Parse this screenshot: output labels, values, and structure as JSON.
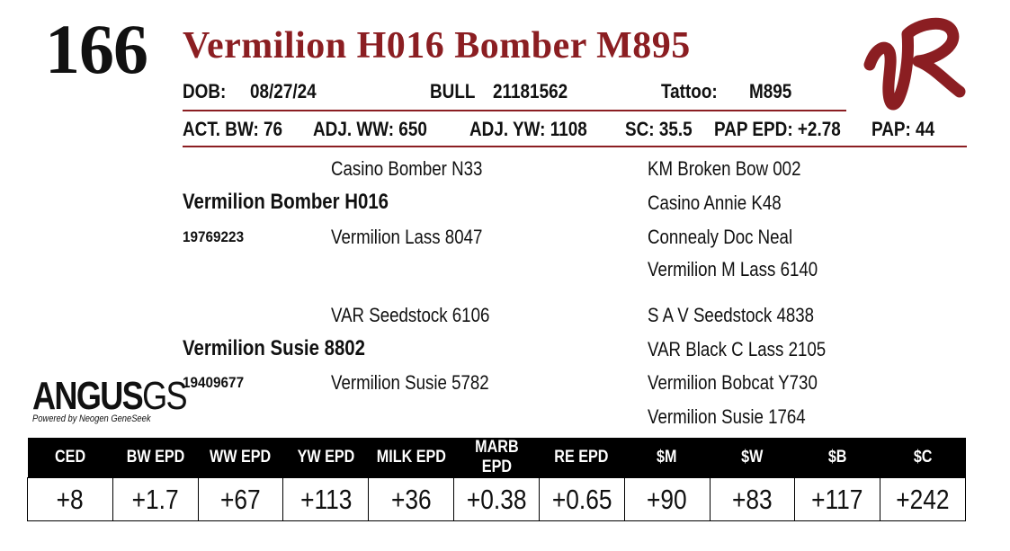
{
  "lot": "166",
  "title": "Vermilion H016 Bomber M895",
  "info": {
    "dob_label": "DOB:",
    "dob": "08/27/24",
    "sex": "BULL",
    "reg": "21181562",
    "tattoo_label": "Tattoo:",
    "tattoo": "M895"
  },
  "stats": {
    "act_bw": "ACT. BW: 76",
    "adj_ww": "ADJ. WW: 650",
    "adj_yw": "ADJ. YW: 1108",
    "sc": "SC: 35.5",
    "pap_epd": "PAP EPD: +2.78",
    "pap": "PAP: 44"
  },
  "pedigree": {
    "sire": {
      "name": "Vermilion Bomber H016",
      "reg": "19769223",
      "sire": "Casino Bomber N33",
      "dam": "Vermilion Lass 8047",
      "gg": [
        "KM Broken Bow 002",
        "Casino Annie K48",
        "Connealy Doc Neal",
        "Vermilion M Lass 6140"
      ]
    },
    "dam": {
      "name": "Vermilion Susie 8802",
      "reg": "19409677",
      "sire": "VAR Seedstock 6106",
      "dam": "Vermilion Susie 5782",
      "gg": [
        "S A V Seedstock 4838",
        "VAR Black C Lass 2105",
        "Vermilion Bobcat Y730",
        "Vermilion Susie 1764"
      ]
    }
  },
  "logo": {
    "brand": "ANGUS",
    "suffix": "GS",
    "tagline": "Powered by Neogen GeneSeek",
    "ranch_mark": "VR"
  },
  "colors": {
    "accent": "#8b1e22",
    "header_bg": "#000000"
  },
  "epd": {
    "headers": [
      "CED",
      "BW EPD",
      "WW EPD",
      "YW EPD",
      "MILK EPD",
      "MARB EPD",
      "RE EPD",
      "$M",
      "$W",
      "$B",
      "$C"
    ],
    "values": [
      "+8",
      "+1.7",
      "+67",
      "+113",
      "+36",
      "+0.38",
      "+0.65",
      "+90",
      "+83",
      "+117",
      "+242"
    ]
  }
}
